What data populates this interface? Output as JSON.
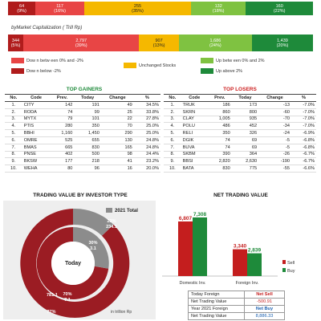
{
  "top_bar": {
    "segments": [
      {
        "count": "64",
        "pct": "(9%)",
        "color": "#b01c1c"
      },
      {
        "count": "117",
        "pct": "(16%)",
        "color": "#e84545"
      },
      {
        "count": "255",
        "pct": "(35%)",
        "color": "#f5b800"
      },
      {
        "count": "132",
        "pct": "(18%)",
        "color": "#7fc241"
      },
      {
        "count": "160",
        "pct": "(22%)",
        "color": "#1e8a3a"
      }
    ]
  },
  "cap": {
    "title": "byMarket Capitalization ( Trill Rp)",
    "segments": [
      {
        "count": "344",
        "pct": "(5%)"
      },
      {
        "count": "2,797",
        "pct": "(39%)"
      },
      {
        "count": "907",
        "pct": "(13%)"
      },
      {
        "count": "1,686",
        "pct": "(24%)"
      },
      {
        "count": "1,439",
        "pct": "(20%)"
      }
    ]
  },
  "legend": {
    "down_between": "Dow n betw een 0% and -2%",
    "down_below": "Dow n below -2%",
    "unchanged": "Unchanged Stocks",
    "up_between": "Up betw een 0% and 2%",
    "up_above": "Up above 2%"
  },
  "gainers": {
    "title": "TOP GAINERS",
    "headers": [
      "No.",
      "Code",
      "Prev.",
      "Today",
      "Change",
      "%"
    ],
    "rows": [
      [
        "1.",
        "CITY",
        "142",
        "191",
        "49",
        "34.5%"
      ],
      [
        "2.",
        "RODA",
        "74",
        "99",
        "25",
        "33.8%"
      ],
      [
        "3.",
        "MYTX",
        "79",
        "101",
        "22",
        "27.8%"
      ],
      [
        "4.",
        "PTIS",
        "280",
        "350",
        "70",
        "25.0%"
      ],
      [
        "5.",
        "BBHI",
        "1,160",
        "1,450",
        "290",
        "25.0%"
      ],
      [
        "6.",
        "OMRE",
        "525",
        "655",
        "130",
        "24.8%"
      ],
      [
        "7.",
        "BMAS",
        "665",
        "830",
        "165",
        "24.8%"
      ],
      [
        "8.",
        "PNSE",
        "402",
        "500",
        "98",
        "24.4%"
      ],
      [
        "9.",
        "BKSW",
        "177",
        "218",
        "41",
        "23.2%"
      ],
      [
        "10.",
        "WEHA",
        "80",
        "96",
        "16",
        "20.0%"
      ]
    ]
  },
  "losers": {
    "title": "TOP LOSERS",
    "headers": [
      "No.",
      "Code",
      "Prev.",
      "Today",
      "Change",
      "%"
    ],
    "rows": [
      [
        "1.",
        "TRUK",
        "186",
        "173",
        "-13",
        "-7.0%"
      ],
      [
        "2.",
        "SKRN",
        "860",
        "800",
        "-60",
        "-7.0%"
      ],
      [
        "3.",
        "CLAY",
        "1,005",
        "935",
        "-70",
        "-7.0%"
      ],
      [
        "4.",
        "POLU",
        "486",
        "452",
        "-34",
        "-7.0%"
      ],
      [
        "5.",
        "RELI",
        "350",
        "326",
        "-24",
        "-6.9%"
      ],
      [
        "6.",
        "DGIK",
        "74",
        "69",
        "-5",
        "-6.8%"
      ],
      [
        "7.",
        "BUVA",
        "74",
        "69",
        "-5",
        "-6.8%"
      ],
      [
        "8.",
        "SKBM",
        "390",
        "364",
        "-26",
        "-6.7%"
      ],
      [
        "9.",
        "BBSI",
        "2,820",
        "2,630",
        "-190",
        "-6.7%"
      ],
      [
        "10.",
        "BATA",
        "830",
        "775",
        "-55",
        "-6.6%"
      ]
    ]
  },
  "trading_value": {
    "title": "TRADING VALUE BY INVESTOR TYPE",
    "legend_label": "2021 Total",
    "center_label": "Today",
    "unit_label": "in trillion Rp",
    "outer_foreign_pct": "23%",
    "outer_foreign_val": "234.1",
    "outer_domestic_pct": "77%",
    "outer_domestic_val": "781.1",
    "inner_foreign_pct": "30%",
    "inner_foreign_val": "3.1",
    "inner_domestic_pct": "70%",
    "inner_domestic_val": "7.1"
  },
  "chart_data": {
    "type": "bar",
    "title": "NET TRADING VALUE",
    "categories": [
      "Domestic Inv.",
      "Foreign Inv."
    ],
    "series": [
      {
        "name": "Sell",
        "values": [
          6807,
          3340
        ],
        "labels": [
          "6,807",
          "3,340"
        ],
        "color": "#c41e1e"
      },
      {
        "name": "Buy",
        "values": [
          7308,
          2839
        ],
        "labels": [
          "7,308",
          "2,839"
        ],
        "color": "#1e8a3a"
      }
    ],
    "ylim": [
      0,
      8000
    ]
  },
  "net_table": {
    "rows": [
      {
        "label": "Today Foreign",
        "value": "Net Sell"
      },
      {
        "label": "Net Trading Value",
        "value": "-500.91"
      },
      {
        "label": "Year 2021 Foreign",
        "value": "Net Buy"
      },
      {
        "label": "Net Trading Value",
        "value": "8,886.33"
      }
    ]
  }
}
